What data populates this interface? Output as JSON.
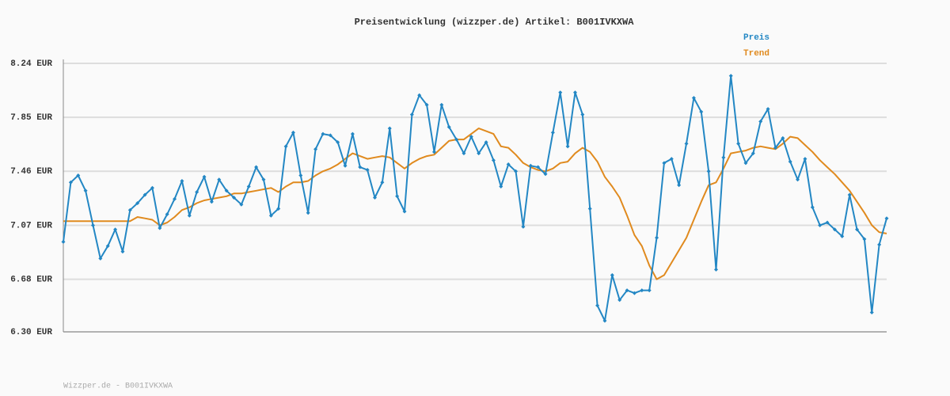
{
  "chart_data": {
    "type": "line",
    "title": "Preisentwicklung (wizzper.de) Artikel: B001IVKXWA",
    "footer": "Wizzper.de - B001IVKXWA",
    "categories": [
      null,
      null,
      null,
      null,
      null,
      null,
      null,
      null,
      null,
      null,
      null,
      null,
      null,
      null,
      null,
      null,
      null,
      null,
      null,
      null,
      null,
      null,
      null,
      null,
      null,
      null,
      null,
      null,
      null,
      null,
      null,
      null,
      null,
      null,
      null,
      null,
      null,
      null,
      null,
      null,
      null,
      null,
      null,
      null,
      null,
      null,
      null,
      null,
      null,
      null,
      null,
      null,
      null,
      null,
      null,
      null,
      null,
      null,
      null,
      null,
      null,
      null,
      null,
      null,
      null,
      null,
      null,
      null,
      null,
      null,
      null,
      null,
      null,
      null,
      null,
      null,
      null,
      null,
      null,
      null,
      null,
      null,
      null,
      null,
      null,
      null,
      null,
      null,
      null,
      null,
      null,
      null,
      null,
      null,
      null,
      null,
      null,
      null,
      null,
      null,
      null,
      null,
      null,
      null,
      null,
      null,
      null,
      null,
      null,
      null,
      null,
      null
    ],
    "series": [
      {
        "name": "Preis",
        "color": "#2387c4",
        "markers": true,
        "values": [
          6.95,
          7.38,
          7.43,
          7.32,
          7.07,
          6.83,
          6.92,
          7.04,
          6.88,
          7.18,
          7.23,
          7.29,
          7.34,
          7.05,
          7.15,
          7.26,
          7.39,
          7.14,
          7.31,
          7.42,
          7.24,
          7.4,
          7.32,
          7.27,
          7.22,
          7.35,
          7.49,
          7.4,
          7.14,
          7.19,
          7.64,
          7.74,
          7.43,
          7.16,
          7.62,
          7.73,
          7.72,
          7.67,
          7.5,
          7.73,
          7.49,
          7.47,
          7.27,
          7.38,
          7.77,
          7.28,
          7.17,
          7.87,
          8.01,
          7.94,
          7.6,
          7.94,
          7.78,
          7.69,
          7.59,
          7.71,
          7.59,
          7.67,
          7.54,
          7.35,
          7.51,
          7.46,
          7.06,
          7.5,
          7.49,
          7.44,
          7.74,
          8.03,
          7.64,
          8.03,
          7.87,
          7.19,
          6.49,
          6.38,
          6.71,
          6.53,
          6.6,
          6.58,
          6.6,
          6.6,
          6.98,
          7.52,
          7.55,
          7.36,
          7.66,
          7.99,
          7.89,
          7.46,
          6.75,
          7.56,
          8.15,
          7.66,
          7.52,
          7.59,
          7.82,
          7.91,
          7.63,
          7.7,
          7.53,
          7.4,
          7.55,
          7.2,
          7.07,
          7.09,
          7.04,
          6.99,
          7.29,
          7.04,
          6.97,
          6.44,
          6.93,
          7.12
        ]
      },
      {
        "name": "Trend",
        "color": "#e08a1e",
        "markers": false,
        "values": [
          7.1,
          7.1,
          7.1,
          7.1,
          7.1,
          7.1,
          7.1,
          7.1,
          7.1,
          7.1,
          7.13,
          7.12,
          7.11,
          7.07,
          7.09,
          7.13,
          7.18,
          7.2,
          7.23,
          7.25,
          7.26,
          7.27,
          7.28,
          7.3,
          7.3,
          7.31,
          7.32,
          7.33,
          7.34,
          7.31,
          7.35,
          7.38,
          7.38,
          7.39,
          7.43,
          7.46,
          7.48,
          7.51,
          7.55,
          7.59,
          7.57,
          7.55,
          7.56,
          7.57,
          7.56,
          7.52,
          7.48,
          7.52,
          7.55,
          7.57,
          7.58,
          7.63,
          7.68,
          7.69,
          7.69,
          7.73,
          7.77,
          7.75,
          7.73,
          7.64,
          7.63,
          7.58,
          7.52,
          7.49,
          7.47,
          7.46,
          7.48,
          7.52,
          7.53,
          7.59,
          7.63,
          7.6,
          7.53,
          7.42,
          7.35,
          7.27,
          7.14,
          7.0,
          6.92,
          6.78,
          6.68,
          6.71,
          6.8,
          6.89,
          6.98,
          7.11,
          7.24,
          7.36,
          7.38,
          7.48,
          7.59,
          7.6,
          7.61,
          7.63,
          7.64,
          7.63,
          7.62,
          7.66,
          7.71,
          7.7,
          7.65,
          7.6,
          7.54,
          7.49,
          7.44,
          7.38,
          7.32,
          7.24,
          7.16,
          7.07,
          7.02,
          7.01
        ]
      }
    ],
    "ylim": [
      6.3,
      8.24
    ],
    "yticks": [
      {
        "value": 6.3,
        "label": "6.30 EUR"
      },
      {
        "value": 6.68,
        "label": "6.68 EUR"
      },
      {
        "value": 7.07,
        "label": "7.07 EUR"
      },
      {
        "value": 7.46,
        "label": "7.46 EUR"
      },
      {
        "value": 7.85,
        "label": "7.85 EUR"
      },
      {
        "value": 8.24,
        "label": "8.24 EUR"
      }
    ],
    "grid": true
  }
}
